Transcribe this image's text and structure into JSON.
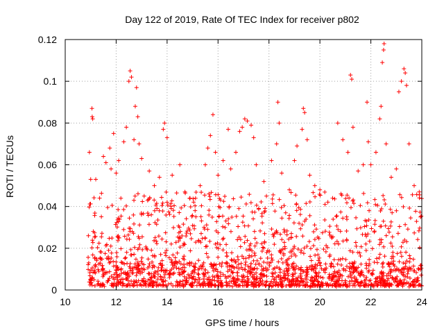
{
  "chart_data": {
    "type": "scatter",
    "title": "Day 122 of 2019, Rate Of TEC Index for receiver p802",
    "xlabel": "GPS time / hours",
    "ylabel": "ROTI / TECUs",
    "xlim": [
      10,
      24
    ],
    "ylim": [
      0,
      0.12
    ],
    "x_ticks": [
      10,
      12,
      14,
      16,
      18,
      20,
      22,
      24
    ],
    "x_tick_labels": [
      "10",
      "12",
      "14",
      "16",
      "18",
      "20",
      "22",
      "24"
    ],
    "y_ticks": [
      0,
      0.02,
      0.04,
      0.06,
      0.08,
      0.1,
      0.12
    ],
    "y_tick_labels": [
      "0",
      "0.02",
      "0.04",
      "0.06",
      "0.08",
      "0.1",
      "0.12"
    ],
    "grid": true,
    "marker": "plus",
    "marker_color": "#ff0000",
    "series": [
      {
        "name": "ROTI",
        "points": [
          [
            10.95,
            0.066
          ],
          [
            11.05,
            0.087
          ],
          [
            11.06,
            0.083
          ],
          [
            11.08,
            0.082
          ],
          [
            11.0,
            0.053
          ],
          [
            11.2,
            0.053
          ],
          [
            11.35,
            0.044
          ],
          [
            11.5,
            0.064
          ],
          [
            11.6,
            0.061
          ],
          [
            11.75,
            0.068
          ],
          [
            11.8,
            0.058
          ],
          [
            11.9,
            0.075
          ],
          [
            12.0,
            0.056
          ],
          [
            12.1,
            0.062
          ],
          [
            12.3,
            0.071
          ],
          [
            12.4,
            0.078
          ],
          [
            12.5,
            0.1
          ],
          [
            12.55,
            0.105
          ],
          [
            12.6,
            0.102
          ],
          [
            12.7,
            0.072
          ],
          [
            12.75,
            0.088
          ],
          [
            12.8,
            0.097
          ],
          [
            12.85,
            0.083
          ],
          [
            12.9,
            0.07
          ],
          [
            13.0,
            0.063
          ],
          [
            13.1,
            0.045
          ],
          [
            13.3,
            0.057
          ],
          [
            13.5,
            0.05
          ],
          [
            13.7,
            0.054
          ],
          [
            13.85,
            0.077
          ],
          [
            13.9,
            0.08
          ],
          [
            14.0,
            0.073
          ],
          [
            14.2,
            0.055
          ],
          [
            14.5,
            0.06
          ],
          [
            14.7,
            0.047
          ],
          [
            14.9,
            0.044
          ],
          [
            15.1,
            0.038
          ],
          [
            15.3,
            0.05
          ],
          [
            15.5,
            0.06
          ],
          [
            15.6,
            0.068
          ],
          [
            15.7,
            0.074
          ],
          [
            15.8,
            0.084
          ],
          [
            15.9,
            0.066
          ],
          [
            16.0,
            0.055
          ],
          [
            16.2,
            0.062
          ],
          [
            16.4,
            0.077
          ],
          [
            16.5,
            0.058
          ],
          [
            16.7,
            0.066
          ],
          [
            16.85,
            0.076
          ],
          [
            16.95,
            0.078
          ],
          [
            17.05,
            0.082
          ],
          [
            17.15,
            0.081
          ],
          [
            17.3,
            0.079
          ],
          [
            17.4,
            0.073
          ],
          [
            17.5,
            0.06
          ],
          [
            17.8,
            0.052
          ],
          [
            17.9,
            0.045
          ],
          [
            18.1,
            0.062
          ],
          [
            18.3,
            0.07
          ],
          [
            18.35,
            0.09
          ],
          [
            18.4,
            0.08
          ],
          [
            18.5,
            0.056
          ],
          [
            18.8,
            0.048
          ],
          [
            19.0,
            0.062
          ],
          [
            19.1,
            0.069
          ],
          [
            19.3,
            0.077
          ],
          [
            19.35,
            0.087
          ],
          [
            19.4,
            0.085
          ],
          [
            19.5,
            0.072
          ],
          [
            19.6,
            0.055
          ],
          [
            19.8,
            0.05
          ],
          [
            20.0,
            0.048
          ],
          [
            20.2,
            0.041
          ],
          [
            20.5,
            0.044
          ],
          [
            20.7,
            0.08
          ],
          [
            20.9,
            0.072
          ],
          [
            21.1,
            0.066
          ],
          [
            21.2,
            0.103
          ],
          [
            21.25,
            0.101
          ],
          [
            21.3,
            0.078
          ],
          [
            21.5,
            0.057
          ],
          [
            21.7,
            0.06
          ],
          [
            21.85,
            0.09
          ],
          [
            21.9,
            0.071
          ],
          [
            22.0,
            0.06
          ],
          [
            22.2,
            0.066
          ],
          [
            22.35,
            0.082
          ],
          [
            22.4,
            0.088
          ],
          [
            22.45,
            0.109
          ],
          [
            22.5,
            0.115
          ],
          [
            22.52,
            0.118
          ],
          [
            22.6,
            0.07
          ],
          [
            22.8,
            0.054
          ],
          [
            23.0,
            0.058
          ],
          [
            23.1,
            0.095
          ],
          [
            23.2,
            0.1
          ],
          [
            23.3,
            0.106
          ],
          [
            23.35,
            0.104
          ],
          [
            23.4,
            0.098
          ],
          [
            23.5,
            0.07
          ],
          [
            23.7,
            0.05
          ],
          [
            23.9,
            0.047
          ],
          [
            23.95,
            0.035
          ]
        ]
      }
    ]
  }
}
